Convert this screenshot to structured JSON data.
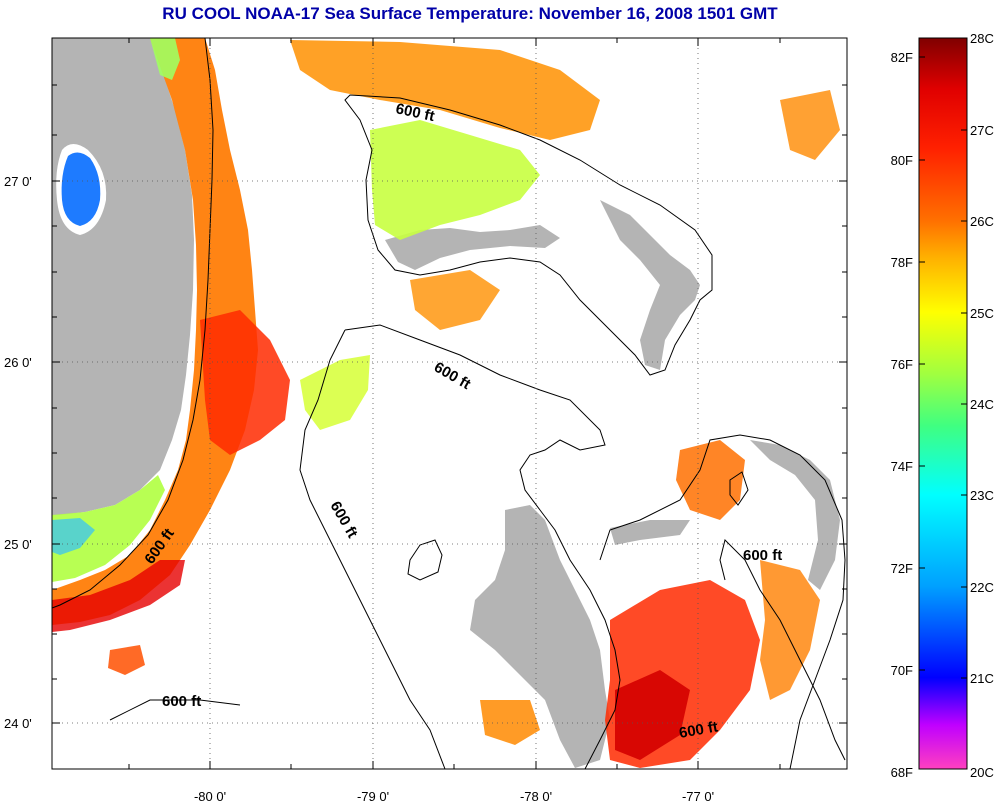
{
  "title": "RU COOL  NOAA-17  Sea Surface Temperature:  November 16, 2008 1501 GMT",
  "map": {
    "lon_ticks": [
      "-80 0'",
      "-79 0'",
      "-78 0'",
      "-77 0'"
    ],
    "lat_ticks": [
      "27 0'",
      "26 0'",
      "25 0'",
      "24 0'"
    ],
    "contour_labels": [
      "600 ft",
      "600 ft",
      "600 ft",
      "600 ft",
      "600 ft",
      "600 ft",
      "600 ft"
    ],
    "colors": {
      "land": "#b4b4b4",
      "water_bg": "#ffffff",
      "frame": "#000000"
    }
  },
  "colorbar": {
    "fahrenheit_labels": [
      "82F",
      "80F",
      "78F",
      "76F",
      "74F",
      "72F",
      "70F",
      "68F"
    ],
    "celsius_labels": [
      "28C",
      "27C",
      "26C",
      "25C",
      "24C",
      "23C",
      "22C",
      "21C",
      "20C"
    ],
    "gradient": [
      "#ff40c0",
      "#c000ff",
      "#0000ff",
      "#00a0ff",
      "#00ffff",
      "#40ff80",
      "#a0ff40",
      "#ffff00",
      "#ffb000",
      "#ff7000",
      "#ff2000",
      "#e00000",
      "#800000"
    ]
  }
}
